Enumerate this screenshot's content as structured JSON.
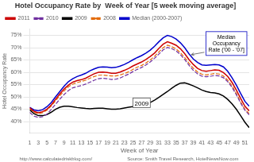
{
  "chart_data": {
    "type": "line",
    "title": "Hotel Occupancy Rate by  Week of Year [5 week moving average]",
    "x_label": "Week of Year",
    "y_label": "Hotel Occupancy Rate",
    "x": [
      1,
      2,
      3,
      4,
      5,
      6,
      7,
      8,
      9,
      10,
      11,
      12,
      13,
      14,
      15,
      16,
      17,
      18,
      19,
      20,
      21,
      22,
      23,
      24,
      25,
      26,
      27,
      28,
      29,
      30,
      31,
      32,
      33,
      34,
      35,
      36,
      37,
      38,
      39,
      40,
      41,
      42,
      43,
      44,
      45,
      46,
      47,
      48,
      49,
      50,
      51,
      52
    ],
    "series": [
      {
        "name": "2011",
        "color": "#cc0000",
        "line_style": "solid",
        "values": [
          0.456,
          0.441,
          0.436,
          0.44,
          0.45,
          0.467,
          0.49,
          0.512,
          0.532,
          0.548,
          0.56,
          0.566,
          0.57,
          0.576,
          0.585,
          0.594,
          0.6,
          0.601,
          0.599,
          0.596,
          0.596,
          0.601,
          0.608,
          0.616,
          0.626,
          0.634,
          0.642,
          0.652,
          0.664,
          0.678,
          0.697,
          0.714,
          0.724,
          0.718,
          0.71,
          0.696,
          0.676,
          0.652,
          0.632,
          0.616,
          0.607,
          0.604,
          0.607,
          0.61,
          0.608,
          0.599,
          0.583,
          0.559,
          0.528,
          0.494,
          0.462,
          0.443
        ]
      },
      {
        "name": "2010",
        "color": "#7030a0",
        "line_style": "dashed",
        "values": [
          0.437,
          0.422,
          0.417,
          0.42,
          0.43,
          0.449,
          0.47,
          0.491,
          0.51,
          0.526,
          0.537,
          0.542,
          0.546,
          0.552,
          0.56,
          0.568,
          0.574,
          0.576,
          0.574,
          0.571,
          0.572,
          0.577,
          0.585,
          0.593,
          0.603,
          0.612,
          0.62,
          0.63,
          0.642,
          0.657,
          0.674,
          0.691,
          0.701,
          0.696,
          0.687,
          0.672,
          0.652,
          0.629,
          0.608,
          0.594,
          0.584,
          0.582,
          0.584,
          0.587,
          0.585,
          0.578,
          0.562,
          0.539,
          0.509,
          0.475,
          0.446,
          0.427
        ]
      },
      {
        "name": "2009",
        "color": "#000000",
        "line_style": "solid",
        "values": [
          0.447,
          0.432,
          0.424,
          0.424,
          0.428,
          0.438,
          0.45,
          0.458,
          0.462,
          0.462,
          0.46,
          0.457,
          0.455,
          0.453,
          0.452,
          0.453,
          0.454,
          0.454,
          0.452,
          0.45,
          0.45,
          0.452,
          0.455,
          0.458,
          0.461,
          0.463,
          0.466,
          0.471,
          0.477,
          0.487,
          0.498,
          0.51,
          0.522,
          0.535,
          0.547,
          0.556,
          0.557,
          0.552,
          0.545,
          0.537,
          0.528,
          0.522,
          0.518,
          0.516,
          0.512,
          0.504,
          0.49,
          0.472,
          0.45,
          0.424,
          0.397,
          0.375
        ]
      },
      {
        "name": "2008",
        "color": "#e36b0a",
        "line_style": "dashed",
        "values": [
          0.452,
          0.437,
          0.432,
          0.436,
          0.446,
          0.463,
          0.484,
          0.505,
          0.525,
          0.541,
          0.552,
          0.558,
          0.563,
          0.568,
          0.576,
          0.583,
          0.588,
          0.589,
          0.587,
          0.585,
          0.585,
          0.589,
          0.595,
          0.602,
          0.612,
          0.621,
          0.628,
          0.638,
          0.65,
          0.665,
          0.683,
          0.7,
          0.71,
          0.704,
          0.695,
          0.68,
          0.66,
          0.637,
          0.617,
          0.601,
          0.592,
          0.589,
          0.592,
          0.595,
          0.593,
          0.585,
          0.568,
          0.545,
          0.514,
          0.48,
          0.45,
          0.432
        ]
      },
      {
        "name": "Median (2000-2007)",
        "color": "#0000cc",
        "line_style": "solid",
        "values": [
          0.458,
          0.447,
          0.444,
          0.448,
          0.46,
          0.477,
          0.5,
          0.522,
          0.544,
          0.562,
          0.574,
          0.583,
          0.589,
          0.596,
          0.606,
          0.614,
          0.62,
          0.622,
          0.621,
          0.619,
          0.62,
          0.625,
          0.632,
          0.641,
          0.651,
          0.66,
          0.668,
          0.678,
          0.69,
          0.706,
          0.724,
          0.74,
          0.75,
          0.745,
          0.735,
          0.72,
          0.7,
          0.675,
          0.654,
          0.64,
          0.63,
          0.628,
          0.63,
          0.632,
          0.63,
          0.622,
          0.604,
          0.578,
          0.548,
          0.514,
          0.482,
          0.462
        ]
      }
    ],
    "xlim": [
      1,
      52
    ],
    "xticks": [
      1,
      3,
      5,
      7,
      9,
      11,
      13,
      15,
      17,
      19,
      21,
      23,
      25,
      27,
      29,
      31,
      33,
      35,
      37,
      39,
      41,
      43,
      45,
      47,
      49,
      51
    ],
    "ylim": [
      0.355,
      0.775
    ],
    "yticks": [
      {
        "value": 0.4,
        "label": "40%"
      },
      {
        "value": 0.45,
        "label": "45%"
      },
      {
        "value": 0.5,
        "label": "50%"
      },
      {
        "value": 0.55,
        "label": "55%"
      },
      {
        "value": 0.6,
        "label": "60%"
      },
      {
        "value": 0.65,
        "label": "65%"
      },
      {
        "value": 0.7,
        "label": "70%"
      },
      {
        "value": 0.75,
        "label": "75%"
      }
    ],
    "grid": "y",
    "legend": "upper left",
    "annotations": [
      {
        "text": "Median\nOccupancy\nRate ('00 - '07]"
      },
      {
        "text": "2009",
        "x": 27,
        "y": 0.463
      }
    ],
    "footer": [
      "http://www.calculatedriskblog.com/",
      "Source: Smith Travel Research, HotelNewsNow.com"
    ]
  }
}
